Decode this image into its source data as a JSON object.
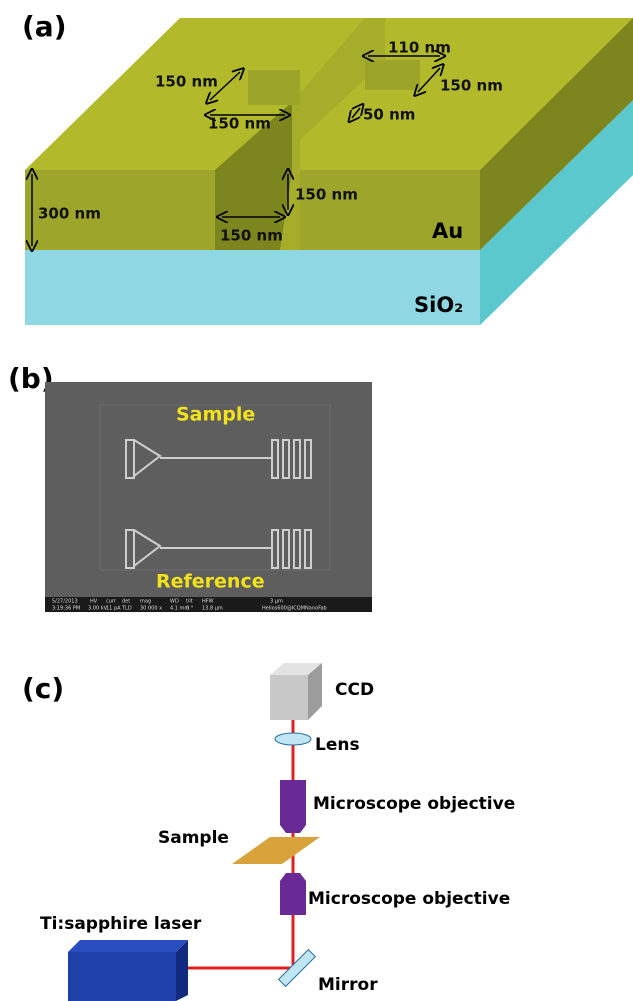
{
  "panel_a": {
    "label": "(a)",
    "dims": [
      "150 nm",
      "150 nm",
      "110 nm",
      "150 nm",
      "50 nm",
      "300 nm",
      "150 nm",
      "150 nm"
    ],
    "layers": [
      "Au",
      "SiO₂"
    ]
  },
  "panel_b": {
    "label": "(b)",
    "sample": "Sample",
    "reference": "Reference",
    "info_bar": [
      "5/27/2013",
      "3:19:36 PM",
      "HV",
      "3.00 kV",
      "curr",
      "11 pA",
      "det",
      "TLD",
      "mag",
      "30 000 x",
      "WD",
      "4.1 mm",
      "tilt",
      "0 °",
      "HFW",
      "13.8 µm",
      "3 µm",
      "Helios600@ICQMNanoFab"
    ]
  },
  "panel_c": {
    "label": "(c)",
    "ccd": "CCD",
    "lens": "Lens",
    "objective_top": "Microscope objective",
    "sample": "Sample",
    "objective_bottom": "Microscope objective",
    "laser": "Ti:sapphire laser",
    "mirror": "Mirror"
  }
}
